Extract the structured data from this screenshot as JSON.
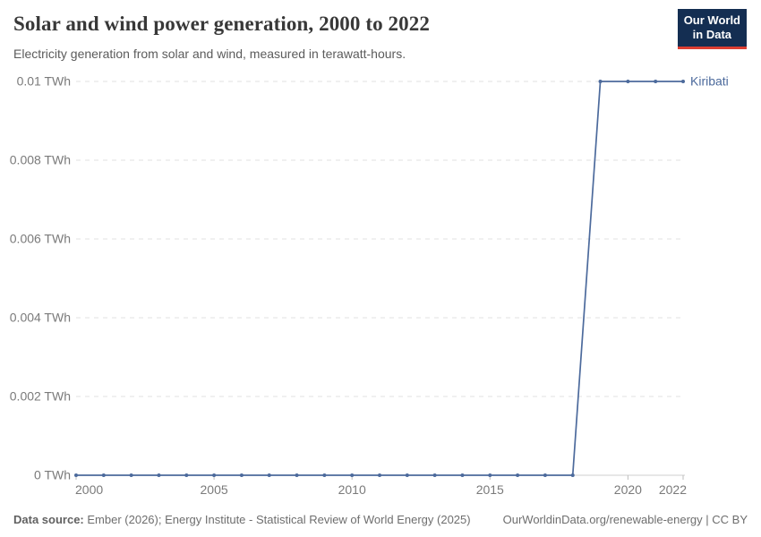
{
  "header": {
    "title": "Solar and wind power generation, 2000 to 2022",
    "subtitle": "Electricity generation from solar and wind, measured in terawatt-hours.",
    "logo_line1": "Our World",
    "logo_line2": "in Data",
    "logo_colors": {
      "background": "#142e52",
      "underline": "#dc3e32",
      "text": "#ffffff"
    }
  },
  "chart_data": {
    "type": "line",
    "title": "Solar and wind power generation, 2000 to 2022",
    "subtitle": "Electricity generation from solar and wind, measured in terawatt-hours.",
    "x": [
      2000,
      2001,
      2002,
      2003,
      2004,
      2005,
      2006,
      2007,
      2008,
      2009,
      2010,
      2011,
      2012,
      2013,
      2014,
      2015,
      2016,
      2017,
      2018,
      2019,
      2020,
      2021,
      2022
    ],
    "series": [
      {
        "name": "Kiribati",
        "color": "#4c6a9c",
        "values": [
          0,
          0,
          0,
          0,
          0,
          0,
          0,
          0,
          0,
          0,
          0,
          0,
          0,
          0,
          0,
          0,
          0,
          0,
          0,
          0.01,
          0.01,
          0.01,
          0.01
        ]
      }
    ],
    "x_ticks": [
      2000,
      2005,
      2010,
      2015,
      2020,
      2022
    ],
    "y_ticks": [
      0,
      0.002,
      0.004,
      0.006,
      0.008,
      0.01
    ],
    "y_unit": " TWh",
    "xlim": [
      2000,
      2022
    ],
    "ylim": [
      0,
      0.01
    ],
    "grid": "horizontal-dashed",
    "legend_position": "end-of-line-label",
    "colors": {
      "grid": "#e2e2e2",
      "axis": "#bdbdbd",
      "tick_label": "#7a7a7a"
    }
  },
  "footer": {
    "source_label": "Data source:",
    "source_text": "Ember (2026); Energy Institute - Statistical Review of World Energy (2025)",
    "attribution": "OurWorldinData.org/renewable-energy | CC BY"
  }
}
